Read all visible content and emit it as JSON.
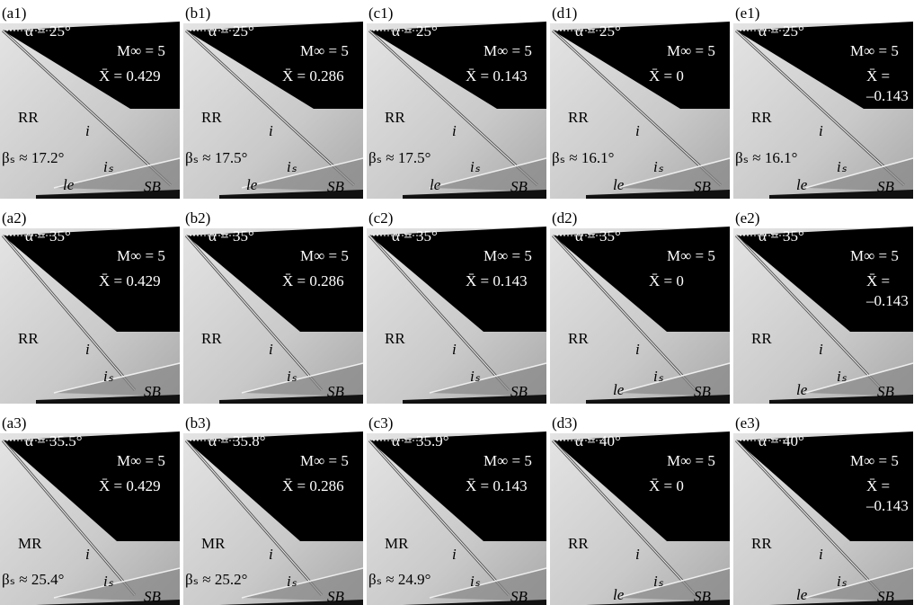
{
  "panels": [
    {
      "label": "(a1)",
      "alpha": "α = 25°",
      "mach": "M∞ = 5",
      "xbar": [
        "X̄ = 0.429"
      ],
      "regime": "RR",
      "i": "i",
      "beta": "βₛ ≈ 17.2°",
      "is": "iₛ",
      "le": "le",
      "sb": "SB"
    },
    {
      "label": "(b1)",
      "alpha": "α = 25°",
      "mach": "M∞ = 5",
      "xbar": [
        "X̄ = 0.286"
      ],
      "regime": "RR",
      "i": "i",
      "beta": "βₛ ≈ 17.5°",
      "is": "iₛ",
      "le": "le",
      "sb": "SB"
    },
    {
      "label": "(c1)",
      "alpha": "α = 25°",
      "mach": "M∞ = 5",
      "xbar": [
        "X̄ = 0.143"
      ],
      "regime": "RR",
      "i": "i",
      "beta": "βₛ ≈ 17.5°",
      "is": "iₛ",
      "le": "le",
      "sb": "SB"
    },
    {
      "label": "(d1)",
      "alpha": "α = 25°",
      "mach": "M∞ = 5",
      "xbar": [
        "X̄ = 0"
      ],
      "regime": "RR",
      "i": "i",
      "beta": "βₛ ≈ 16.1°",
      "is": "iₛ",
      "le": "le",
      "sb": "SB"
    },
    {
      "label": "(e1)",
      "alpha": "α = 25°",
      "mach": "M∞ = 5",
      "xbar": [
        "X̄ =",
        "–0.143"
      ],
      "regime": "RR",
      "i": "i",
      "beta": "βₛ ≈ 16.1°",
      "is": "iₛ",
      "le": "le",
      "sb": "SB"
    },
    {
      "label": "(a2)",
      "alpha": "α = 35°",
      "mach": "M∞ = 5",
      "xbar": [
        "X̄ = 0.429"
      ],
      "regime": "RR",
      "i": "i",
      "is": "iₛ",
      "sb": "SB"
    },
    {
      "label": "(b2)",
      "alpha": "α = 35°",
      "mach": "M∞ = 5",
      "xbar": [
        "X̄ = 0.286"
      ],
      "regime": "RR",
      "i": "i",
      "is": "iₛ",
      "sb": "SB"
    },
    {
      "label": "(c2)",
      "alpha": "α = 35°",
      "mach": "M∞ = 5",
      "xbar": [
        "X̄ = 0.143"
      ],
      "regime": "RR",
      "i": "i",
      "is": "iₛ",
      "sb": "SB"
    },
    {
      "label": "(d2)",
      "alpha": "α = 35°",
      "mach": "M∞ = 5",
      "xbar": [
        "X̄ = 0"
      ],
      "regime": "RR",
      "i": "i",
      "is": "iₛ",
      "le": "le",
      "sb": "SB"
    },
    {
      "label": "(e2)",
      "alpha": "α = 35°",
      "mach": "M∞ = 5",
      "xbar": [
        "X̄ =",
        "–0.143"
      ],
      "regime": "RR",
      "i": "i",
      "is": "iₛ",
      "le": "le",
      "sb": "SB"
    },
    {
      "label": "(a3)",
      "alpha": "α = 35.5°",
      "mach": "M∞ = 5",
      "xbar": [
        "X̄ = 0.429"
      ],
      "regime": "MR",
      "i": "i",
      "beta": "βₛ ≈ 25.4°",
      "is": "iₛ",
      "sb": "SB"
    },
    {
      "label": "(b3)",
      "alpha": "α = 35.8°",
      "mach": "M∞ = 5",
      "xbar": [
        "X̄ = 0.286"
      ],
      "regime": "MR",
      "i": "i",
      "beta": "βₛ ≈ 25.2°",
      "is": "iₛ",
      "sb": "SB"
    },
    {
      "label": "(c3)",
      "alpha": "α = 35.9°",
      "mach": "M∞ = 5",
      "xbar": [
        "X̄ = 0.143"
      ],
      "regime": "MR",
      "i": "i",
      "beta": "βₛ ≈ 24.9°",
      "is": "iₛ",
      "sb": "SB"
    },
    {
      "label": "(d3)",
      "alpha": "α = 40°",
      "mach": "M∞ = 5",
      "xbar": [
        "X̄ = 0"
      ],
      "regime": "RR",
      "i": "i",
      "is": "iₛ",
      "le": "le",
      "sb": "SB"
    },
    {
      "label": "(e3)",
      "alpha": "α = 40°",
      "mach": "M∞ = 5",
      "xbar": [
        "X̄ =",
        "–0.143"
      ],
      "regime": "RR",
      "i": "i",
      "is": "iₛ",
      "le": "le",
      "sb": "SB"
    }
  ]
}
